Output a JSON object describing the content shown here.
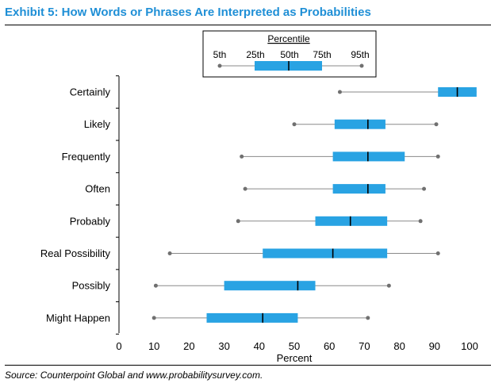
{
  "title": "Exhibit 5: How Words or Phrases Are Interpreted as Probabilities",
  "source": "Source: Counterpoint Global and www.probabilitysurvey.com.",
  "colors": {
    "title": "#1f8fd6",
    "box": "#29a3e3",
    "whisker": "#8a8a8a",
    "dot": "#707070",
    "median": "#000000"
  },
  "legend": {
    "title": "Percentile",
    "labels": [
      "5th",
      "25th",
      "50th",
      "75th",
      "95th"
    ]
  },
  "chart_data": {
    "type": "boxplot",
    "xlabel": "Percent",
    "xlim": [
      0,
      103
    ],
    "xticks": [
      0,
      10,
      20,
      30,
      40,
      50,
      60,
      70,
      80,
      90,
      100
    ],
    "categories": [
      "Certainly",
      "Likely",
      "Frequently",
      "Often",
      "Probably",
      "Real Possibility",
      "Possibly",
      "Might Happen"
    ],
    "series": [
      {
        "label": "Certainly",
        "p5": 63,
        "p25": 91,
        "p50": 96.5,
        "p75": 102,
        "p95": 102
      },
      {
        "label": "Likely",
        "p5": 50,
        "p25": 61.5,
        "p50": 71,
        "p75": 76,
        "p95": 90.5
      },
      {
        "label": "Frequently",
        "p5": 35,
        "p25": 61,
        "p50": 71,
        "p75": 81.5,
        "p95": 91
      },
      {
        "label": "Often",
        "p5": 36,
        "p25": 61,
        "p50": 71,
        "p75": 76,
        "p95": 87
      },
      {
        "label": "Probably",
        "p5": 34,
        "p25": 56,
        "p50": 66,
        "p75": 76.5,
        "p95": 86
      },
      {
        "label": "Real Possibility",
        "p5": 14.5,
        "p25": 41,
        "p50": 61,
        "p75": 76.5,
        "p95": 91
      },
      {
        "label": "Possibly",
        "p5": 10.5,
        "p25": 30,
        "p50": 51,
        "p75": 56,
        "p95": 77
      },
      {
        "label": "Might Happen",
        "p5": 10,
        "p25": 25,
        "p50": 41,
        "p75": 51,
        "p95": 71
      }
    ]
  }
}
